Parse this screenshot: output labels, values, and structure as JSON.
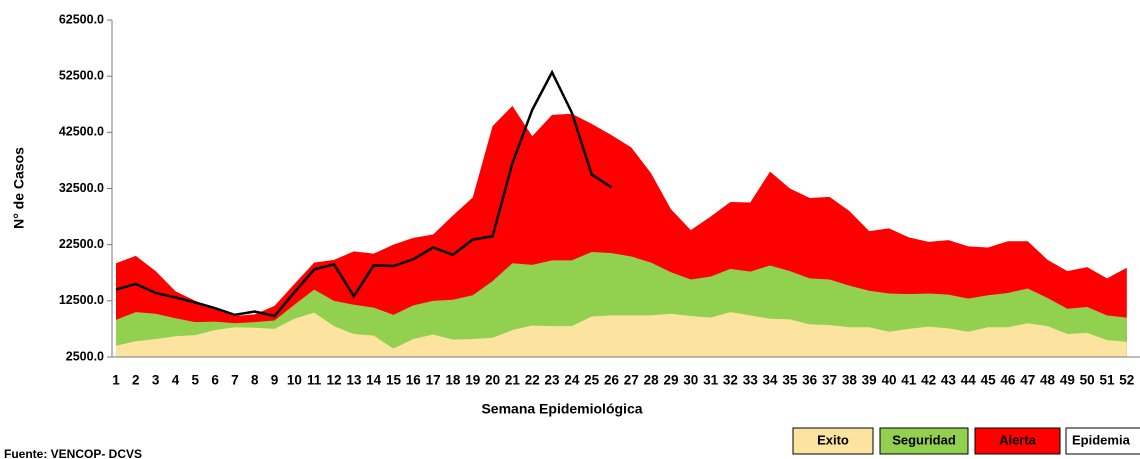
{
  "chart_data": {
    "type": "area",
    "ylabel": "N° de Casos",
    "xlabel": "Semana Epidemiológica",
    "source": "Fuente: VENCOP- DCVS",
    "categories": [
      1,
      2,
      3,
      4,
      5,
      6,
      7,
      8,
      9,
      10,
      11,
      12,
      13,
      14,
      15,
      16,
      17,
      18,
      19,
      20,
      21,
      22,
      23,
      24,
      25,
      26,
      27,
      28,
      29,
      30,
      31,
      32,
      33,
      34,
      35,
      36,
      37,
      38,
      39,
      40,
      41,
      42,
      43,
      44,
      45,
      46,
      47,
      48,
      49,
      50,
      51,
      52
    ],
    "ylim": [
      2500,
      62500
    ],
    "yticks": [
      {
        "value": 2500,
        "label": "2500.0"
      },
      {
        "value": 12500,
        "label": "12500.0"
      },
      {
        "value": 22500,
        "label": "22500.0"
      },
      {
        "value": 32500,
        "label": "32500.0"
      },
      {
        "value": 42500,
        "label": "42500.0"
      },
      {
        "value": 52500,
        "label": "52500.0"
      },
      {
        "value": 62500,
        "label": "62500.0"
      }
    ],
    "series": [
      {
        "name": "Exito",
        "color": "#fce4a0",
        "kind": "area",
        "values": [
          4500,
          5300,
          5700,
          6200,
          6400,
          7300,
          7800,
          7700,
          7500,
          9300,
          10400,
          8000,
          6600,
          6300,
          4000,
          5700,
          6500,
          5600,
          5700,
          5900,
          7300,
          8100,
          8000,
          8000,
          9700,
          9900,
          9900,
          9900,
          10200,
          9800,
          9500,
          10500,
          9900,
          9300,
          9200,
          8300,
          8200,
          7800,
          7800,
          7000,
          7500,
          7900,
          7600,
          7000,
          7800,
          7800,
          8500,
          8000,
          6600,
          6800,
          5500,
          5200
        ]
      },
      {
        "name": "Seguridad",
        "color": "#92d050",
        "kind": "area",
        "values": [
          9100,
          10500,
          10200,
          9400,
          8700,
          8800,
          8500,
          8700,
          9000,
          11800,
          14500,
          12500,
          11800,
          11300,
          10000,
          11700,
          12500,
          12700,
          13500,
          16000,
          19200,
          18900,
          19700,
          19700,
          21200,
          21000,
          20400,
          19300,
          17600,
          16300,
          16800,
          18200,
          17700,
          18800,
          17800,
          16500,
          16300,
          15200,
          14300,
          13800,
          13700,
          13800,
          13600,
          12900,
          13500,
          13900,
          14700,
          13000,
          11100,
          11400,
          9900,
          9500
        ]
      },
      {
        "name": "Alerta",
        "color": "#ff0000",
        "kind": "area",
        "values": [
          19200,
          20500,
          17800,
          14200,
          12500,
          11000,
          9800,
          10100,
          11600,
          15500,
          19300,
          19800,
          21300,
          20900,
          22500,
          23700,
          24300,
          27700,
          30900,
          43600,
          47200,
          41800,
          45600,
          45800,
          44000,
          42000,
          39800,
          35200,
          28800,
          25100,
          27500,
          30100,
          30000,
          35500,
          32500,
          30800,
          31000,
          28500,
          24900,
          25400,
          23800,
          23000,
          23300,
          22200,
          22000,
          23100,
          23100,
          19800,
          17800,
          18500,
          16500,
          18400
        ]
      },
      {
        "name": "Epidemia",
        "color": "#000000",
        "kind": "line",
        "values": [
          14500,
          15500,
          13900,
          13100,
          12200,
          11200,
          10000,
          10600,
          9800,
          14000,
          18100,
          19000,
          13300,
          18800,
          18700,
          19900,
          22000,
          20700,
          23400,
          24000,
          37000,
          46500,
          53200,
          46000,
          35000,
          32700,
          null,
          null,
          null,
          null,
          null,
          null,
          null,
          null,
          null,
          null,
          null,
          null,
          null,
          null,
          null,
          null,
          null,
          null,
          null,
          null,
          null,
          null,
          null,
          null,
          null,
          null
        ]
      }
    ]
  }
}
